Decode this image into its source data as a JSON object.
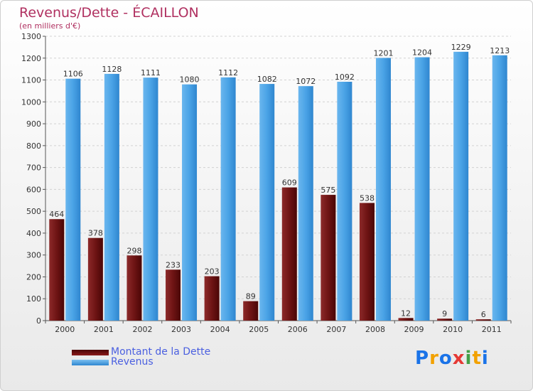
{
  "header": {
    "title": "Revenus/Dette - ÉCAILLON",
    "subtitle": "(en milliers d'€)"
  },
  "logo": {
    "letters": [
      "P",
      "r",
      "o",
      "x",
      "i",
      "t",
      "i"
    ],
    "colors": [
      "#1a73e8",
      "#f2a100",
      "#1a73e8",
      "#e53935",
      "#43a047",
      "#f2a100",
      "#1a73e8"
    ]
  },
  "chart_data": {
    "type": "bar",
    "categories": [
      "2000",
      "2001",
      "2002",
      "2003",
      "2004",
      "2005",
      "2006",
      "2007",
      "2008",
      "2009",
      "2010",
      "2011"
    ],
    "series": [
      {
        "name": "Montant de la Dette",
        "color": "#6b0f0f",
        "values": [
          464,
          378,
          298,
          233,
          203,
          89,
          609,
          575,
          538,
          12,
          9,
          6
        ]
      },
      {
        "name": "Revenus",
        "color": "#4aa3e6",
        "values": [
          1106,
          1128,
          1111,
          1080,
          1112,
          1082,
          1072,
          1092,
          1201,
          1204,
          1229,
          1213
        ]
      }
    ],
    "ylim": [
      0,
      1300
    ],
    "yticks": [
      0,
      100,
      200,
      300,
      400,
      500,
      600,
      700,
      800,
      900,
      1000,
      1100,
      1200,
      1300
    ],
    "grid": true,
    "legend_position": "bottom-left"
  }
}
